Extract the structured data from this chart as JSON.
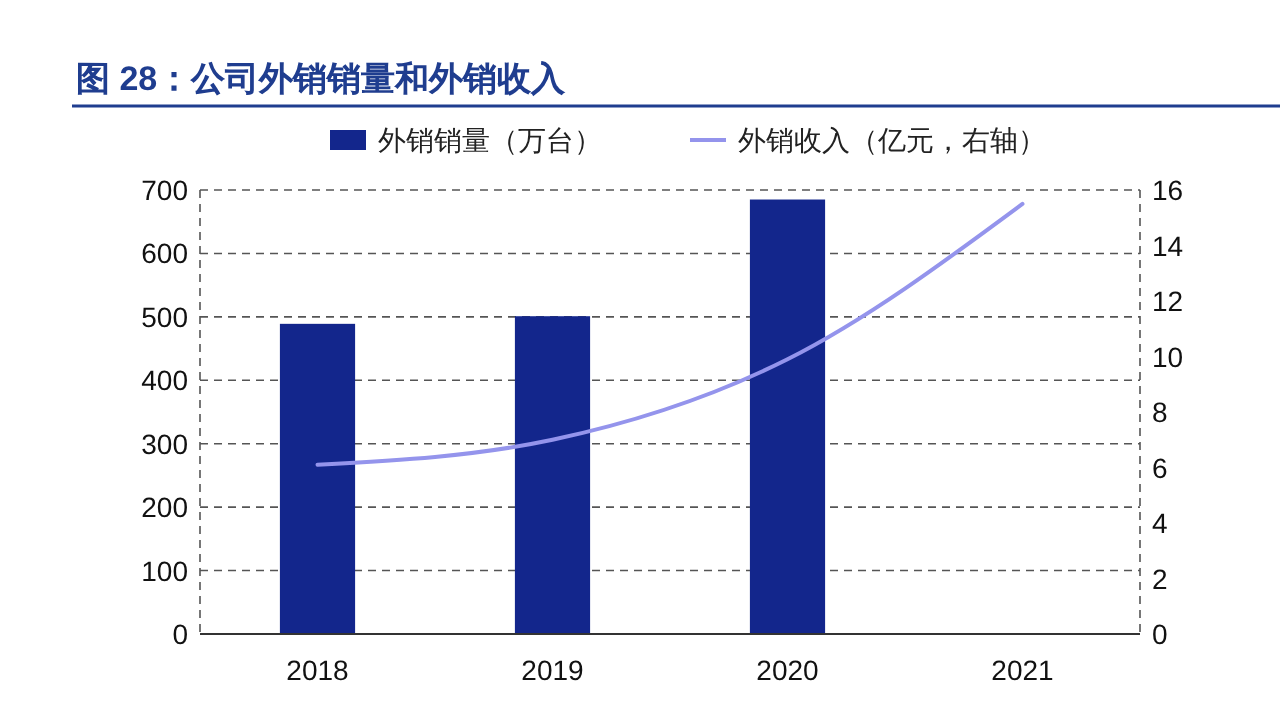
{
  "chart_data": {
    "type": "bar",
    "title": "图 28：公司外销销量和外销收入",
    "categories": [
      "2018",
      "2019",
      "2020",
      "2021"
    ],
    "series": [
      {
        "name": "外销销量（万台）",
        "color": "#13268c",
        "values": [
          489,
          501,
          685,
          null
        ]
      },
      {
        "name": "外销收入（亿元，右轴）",
        "type": "line",
        "axis": "y2",
        "color": "#9494ec",
        "values": [
          6.1,
          7.0,
          9.9,
          15.5
        ]
      }
    ],
    "ylim": [
      0,
      700
    ],
    "yticks": [
      0,
      100,
      200,
      300,
      400,
      500,
      600,
      700
    ],
    "y2lim": [
      0,
      16
    ],
    "y2ticks": [
      0,
      2,
      4,
      6,
      8,
      10,
      12,
      14,
      16
    ],
    "grid": "y",
    "legend": "top",
    "line_style": "solid"
  }
}
